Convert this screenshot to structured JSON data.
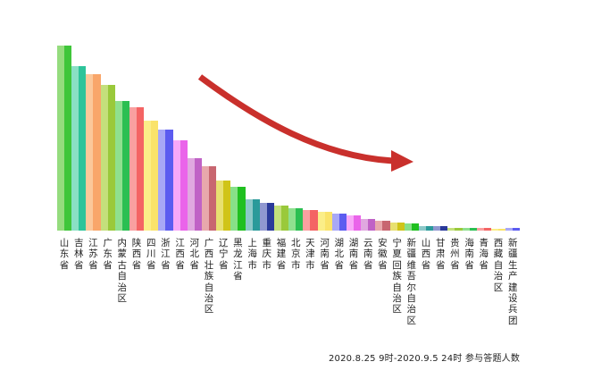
{
  "caption": "2020.8.25 9时-2020.9.5 24时 参与答题人数",
  "arrow_color": "#c9302c",
  "chart_data": {
    "type": "bar",
    "title": "",
    "subtitle": "2020.8.25 9时-2020.9.5 24时 参与答题人数",
    "xlabel": "",
    "ylabel": "参与答题人数",
    "y_axis_visible": false,
    "grid": false,
    "legend": "none",
    "annotation": "red curved arrow pointing down-right indicating decreasing trend",
    "value_units": "relative bar height (px, no axis labels shown)",
    "categories": [
      "山东省",
      "吉林省",
      "江苏省",
      "广东省",
      "内蒙古自治区",
      "陕西省",
      "四川省",
      "浙江省",
      "江西省",
      "河北省",
      "广西壮族自治区",
      "辽宁省",
      "黑龙江省",
      "上海市",
      "重庆市",
      "福建省",
      "北京市",
      "天津市",
      "河南省",
      "湖北省",
      "湖南省",
      "云南省",
      "安徽省",
      "宁夏回族自治区",
      "新疆维吾尔自治区",
      "山西省",
      "甘肃省",
      "贵州省",
      "海南省",
      "青海省",
      "西藏自治区",
      "新疆生产建设兵团"
    ],
    "values": [
      207,
      184,
      175,
      163,
      145,
      138,
      123,
      113,
      101,
      81,
      72,
      56,
      49,
      35,
      31,
      28,
      25,
      23,
      21,
      19,
      17,
      13,
      11,
      9,
      8,
      5,
      5,
      3,
      3,
      3,
      2,
      3
    ],
    "colors": [
      [
        "#95dc7e",
        "#3fc63a"
      ],
      [
        "#8ae0c4",
        "#2dc49a"
      ],
      [
        "#fbc89a",
        "#f9a66a"
      ],
      [
        "#c4e07c",
        "#9ac93b"
      ],
      [
        "#8fe08f",
        "#2bbf52"
      ],
      [
        "#f9a0a0",
        "#f46464"
      ],
      [
        "#fbee88",
        "#fae36a"
      ],
      [
        "#a8a8f6",
        "#5c5cf0"
      ],
      [
        "#f8a8f8",
        "#ea64ea"
      ],
      [
        "#e0a8e0",
        "#c062c6"
      ],
      [
        "#e8a8ac",
        "#c86670"
      ],
      [
        "#e8e070",
        "#d0c418"
      ],
      [
        "#88e088",
        "#20c020"
      ],
      [
        "#8cc8c8",
        "#2a9a9a"
      ],
      [
        "#9098d0",
        "#2a3a9a"
      ],
      [
        "#c4e07c",
        "#9ac93b"
      ],
      [
        "#8fe08f",
        "#2bbf52"
      ],
      [
        "#f9a0a0",
        "#f46464"
      ],
      [
        "#fbee88",
        "#fae36a"
      ],
      [
        "#a8a8f6",
        "#5c5cf0"
      ],
      [
        "#f8a8f8",
        "#ea64ea"
      ],
      [
        "#e0a8e0",
        "#c062c6"
      ],
      [
        "#e8a8ac",
        "#c86670"
      ],
      [
        "#e8e070",
        "#d0c418"
      ],
      [
        "#88e088",
        "#20c020"
      ],
      [
        "#8cc8c8",
        "#2a9a9a"
      ],
      [
        "#9098d0",
        "#2a3a9a"
      ],
      [
        "#c4e07c",
        "#9ac93b"
      ],
      [
        "#8fe08f",
        "#2bbf52"
      ],
      [
        "#f9a0a0",
        "#f46464"
      ],
      [
        "#fbee88",
        "#fae36a"
      ],
      [
        "#a8a8f6",
        "#5c5cf0"
      ]
    ]
  }
}
